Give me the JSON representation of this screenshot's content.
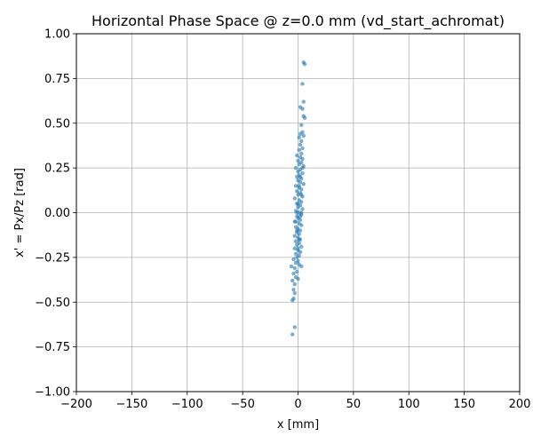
{
  "chart_data": {
    "type": "scatter",
    "title": "Horizontal Phase Space @ z=0.0 mm (vd_start_achromat)",
    "xlabel": "x [mm]",
    "ylabel": "x' = Px/Pz [rad]",
    "xlim": [
      -200,
      200
    ],
    "ylim": [
      -1.0,
      1.0
    ],
    "xticks": [
      -200,
      -150,
      -100,
      -50,
      0,
      50,
      100,
      150,
      200
    ],
    "xtick_labels": [
      "−200",
      "−150",
      "−100",
      "−50",
      "0",
      "50",
      "100",
      "150",
      "200"
    ],
    "yticks": [
      -1.0,
      -0.75,
      -0.5,
      -0.25,
      0.0,
      0.25,
      0.5,
      0.75,
      1.0
    ],
    "ytick_labels": [
      "−1.00",
      "−0.75",
      "−0.50",
      "−0.25",
      "0.00",
      "0.25",
      "0.50",
      "0.75",
      "1.00"
    ],
    "grid": true,
    "marker_color": "#1f77b4",
    "points": [
      [
        5,
        0.84
      ],
      [
        6,
        0.83
      ],
      [
        4,
        0.72
      ],
      [
        5,
        0.62
      ],
      [
        4,
        0.58
      ],
      [
        2,
        0.59
      ],
      [
        5,
        0.54
      ],
      [
        6,
        0.53
      ],
      [
        3,
        0.49
      ],
      [
        4,
        0.45
      ],
      [
        2,
        0.44
      ],
      [
        5,
        0.43
      ],
      [
        1,
        0.42
      ],
      [
        3,
        0.4
      ],
      [
        2,
        0.38
      ],
      [
        4,
        0.36
      ],
      [
        1,
        0.35
      ],
      [
        3,
        0.33
      ],
      [
        -1,
        0.32
      ],
      [
        2,
        0.31
      ],
      [
        4,
        0.3
      ],
      [
        0,
        0.29
      ],
      [
        3,
        0.28
      ],
      [
        1,
        0.27
      ],
      [
        5,
        0.26
      ],
      [
        -2,
        0.25
      ],
      [
        2,
        0.24
      ],
      [
        0,
        0.23
      ],
      [
        4,
        0.22
      ],
      [
        1,
        0.21
      ],
      [
        -1,
        0.2
      ],
      [
        3,
        0.19
      ],
      [
        0,
        0.18
      ],
      [
        2,
        0.17
      ],
      [
        5,
        0.16
      ],
      [
        -2,
        0.15
      ],
      [
        1,
        0.14
      ],
      [
        3,
        0.13
      ],
      [
        -1,
        0.12
      ],
      [
        2,
        0.11
      ],
      [
        0,
        0.1
      ],
      [
        4,
        0.09
      ],
      [
        -3,
        0.08
      ],
      [
        1,
        0.07
      ],
      [
        3,
        0.06
      ],
      [
        -1,
        0.05
      ],
      [
        2,
        0.04
      ],
      [
        0,
        0.03
      ],
      [
        4,
        0.02
      ],
      [
        -2,
        0.01
      ],
      [
        1,
        0.0
      ],
      [
        3,
        -0.01
      ],
      [
        -1,
        -0.02
      ],
      [
        0,
        -0.03
      ],
      [
        2,
        -0.04
      ],
      [
        -3,
        -0.05
      ],
      [
        1,
        -0.06
      ],
      [
        3,
        -0.07
      ],
      [
        -2,
        -0.08
      ],
      [
        0,
        -0.09
      ],
      [
        2,
        -0.1
      ],
      [
        -1,
        -0.11
      ],
      [
        1,
        -0.12
      ],
      [
        -3,
        -0.13
      ],
      [
        0,
        -0.14
      ],
      [
        2,
        -0.15
      ],
      [
        -2,
        -0.16
      ],
      [
        1,
        -0.17
      ],
      [
        -1,
        -0.18
      ],
      [
        3,
        -0.19
      ],
      [
        -3,
        -0.2
      ],
      [
        0,
        -0.21
      ],
      [
        2,
        -0.22
      ],
      [
        -2,
        -0.23
      ],
      [
        1,
        -0.24
      ],
      [
        -1,
        -0.25
      ],
      [
        -4,
        -0.26
      ],
      [
        0,
        -0.27
      ],
      [
        -2,
        -0.28
      ],
      [
        1,
        -0.29
      ],
      [
        -6,
        -0.3
      ],
      [
        -3,
        -0.31
      ],
      [
        3,
        -0.3
      ],
      [
        -1,
        -0.33
      ],
      [
        -4,
        -0.34
      ],
      [
        -2,
        -0.36
      ],
      [
        0,
        -0.37
      ],
      [
        -5,
        -0.38
      ],
      [
        -3,
        -0.4
      ],
      [
        -4,
        -0.43
      ],
      [
        -3,
        -0.45
      ],
      [
        -4,
        -0.48
      ],
      [
        -5,
        -0.49
      ],
      [
        -3,
        -0.64
      ],
      [
        -5,
        -0.68
      ],
      [
        3,
        0.0
      ],
      [
        -1,
        0.0
      ],
      [
        2,
        -0.02
      ],
      [
        0,
        0.05
      ],
      [
        1,
        0.15
      ],
      [
        -1,
        -0.1
      ],
      [
        4,
        0.25
      ],
      [
        -2,
        -0.05
      ],
      [
        3,
        0.1
      ],
      [
        0,
        -0.2
      ],
      [
        2,
        0.2
      ],
      [
        1,
        -0.15
      ]
    ]
  }
}
